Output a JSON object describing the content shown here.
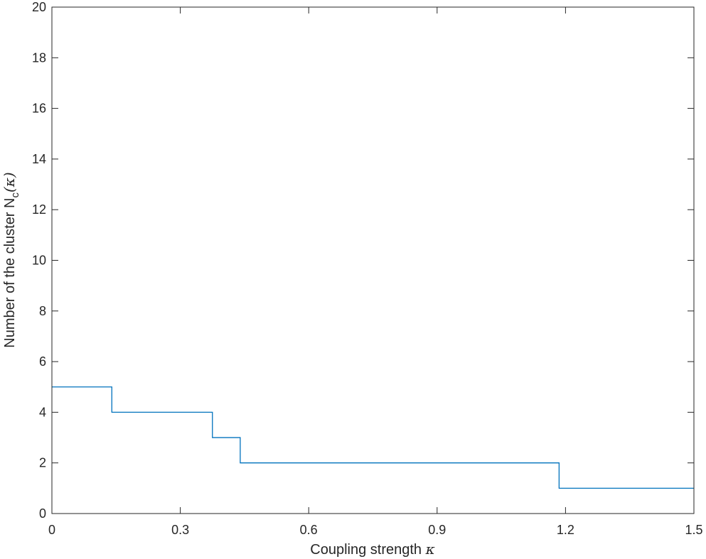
{
  "chart_data": {
    "type": "line",
    "step": true,
    "xlabel": "Coupling strength",
    "xlabel_symbol": "κ",
    "ylabel_prefix": "Number of the cluster N",
    "ylabel_subscript": "c",
    "ylabel_paren": "(κ)",
    "xlim": [
      0,
      1.5
    ],
    "ylim": [
      0,
      20
    ],
    "xticks": [
      0,
      0.3,
      0.6,
      0.9,
      1.2,
      1.5
    ],
    "xtick_labels": [
      "0",
      "0.3",
      "0.6",
      "0.9",
      "1.2",
      "1.5"
    ],
    "yticks": [
      0,
      2,
      4,
      6,
      8,
      10,
      12,
      14,
      16,
      18,
      20
    ],
    "ytick_labels": [
      "0",
      "2",
      "4",
      "6",
      "8",
      "10",
      "12",
      "14",
      "16",
      "18",
      "20"
    ],
    "grid": false,
    "series": [
      {
        "color": "#0072BD",
        "x": [
          0,
          0.14,
          0.14,
          0.375,
          0.375,
          0.44,
          0.44,
          1.185,
          1.185,
          1.5
        ],
        "y": [
          5,
          5,
          4,
          4,
          3,
          3,
          2,
          2,
          1,
          1
        ]
      }
    ]
  }
}
